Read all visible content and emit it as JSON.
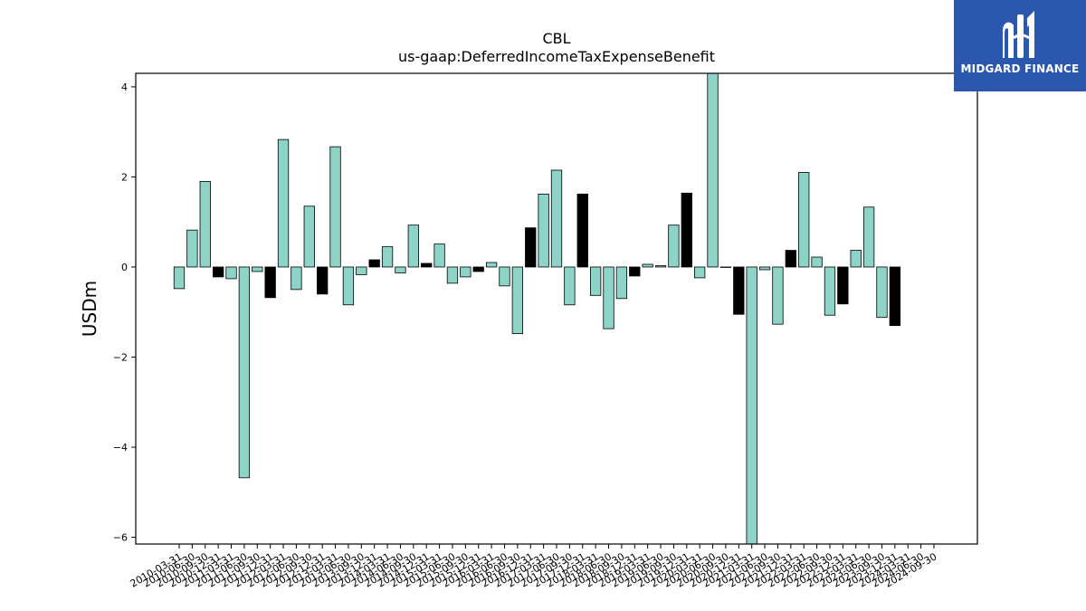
{
  "chart_data": {
    "type": "bar",
    "title": "CBL",
    "subtitle": "us-gaap:DeferredIncomeTaxExpenseBenefit",
    "xlabel": "",
    "ylabel": "USDm",
    "ylim": [
      -6.15,
      4.3
    ],
    "yticks": [
      -6,
      -4,
      -2,
      0,
      2,
      4
    ],
    "ytick_labels": [
      "−6",
      "−4",
      "−2",
      "0",
      "2",
      "4"
    ],
    "grid": false,
    "colors": {
      "quarterly": "#8dd3c7",
      "derived_q4": "#000000",
      "edge": "#000000"
    },
    "categories": [
      "2010-03-31",
      "2010-06-30",
      "2010-09-30",
      "2010-12-31",
      "2011-03-31",
      "2011-06-30",
      "2011-09-30",
      "2011-12-31",
      "2012-03-31",
      "2012-06-30",
      "2012-09-30",
      "2012-12-31",
      "2013-03-31",
      "2013-06-30",
      "2013-09-30",
      "2013-12-31",
      "2014-03-31",
      "2014-06-30",
      "2014-09-30",
      "2014-12-31",
      "2015-03-31",
      "2015-06-30",
      "2015-09-30",
      "2015-12-31",
      "2016-03-31",
      "2016-06-30",
      "2016-09-30",
      "2016-12-31",
      "2017-03-31",
      "2017-06-30",
      "2017-09-30",
      "2017-12-31",
      "2018-03-31",
      "2018-06-30",
      "2018-09-30",
      "2018-12-31",
      "2019-03-31",
      "2019-06-30",
      "2019-09-30",
      "2019-12-31",
      "2020-03-31",
      "2020-06-30",
      "2020-09-30",
      "2020-12-31",
      "2021-03-31",
      "2021-06-30",
      "2021-09-30",
      "2021-12-31",
      "2022-03-31",
      "2022-06-30",
      "2022-09-30",
      "2022-12-31",
      "2023-03-31",
      "2023-06-30",
      "2023-09-30",
      "2023-12-31",
      "2024-03-31",
      "2024-06-30",
      "2024-09-30"
    ],
    "values": [
      -0.48,
      0.82,
      1.9,
      -0.22,
      -0.26,
      -4.68,
      -0.1,
      -0.68,
      2.83,
      -0.5,
      1.35,
      -0.6,
      2.67,
      -0.84,
      -0.17,
      0.16,
      0.45,
      -0.13,
      0.93,
      0.08,
      0.51,
      -0.36,
      -0.22,
      -0.1,
      0.1,
      -0.42,
      -1.48,
      0.87,
      1.62,
      2.15,
      -0.84,
      1.62,
      -0.63,
      -1.37,
      -0.7,
      -0.2,
      0.06,
      0.03,
      0.93,
      1.64,
      -0.24,
      4.3,
      0.0,
      -1.05,
      -6.15,
      -0.06,
      -1.27,
      0.37,
      2.1,
      0.22,
      -1.07,
      -0.82,
      0.37,
      1.33,
      -1.12,
      -1.3,
      null,
      null,
      null
    ],
    "derived_q4_index": [
      3,
      7,
      11,
      15,
      19,
      23,
      27,
      31,
      35,
      39,
      43,
      47,
      51,
      55
    ]
  },
  "watermark": {
    "brand_text": "MIDGARD FINANCE",
    "background": "#2b57ad",
    "logo_icon": "midgard-logo-icon"
  }
}
